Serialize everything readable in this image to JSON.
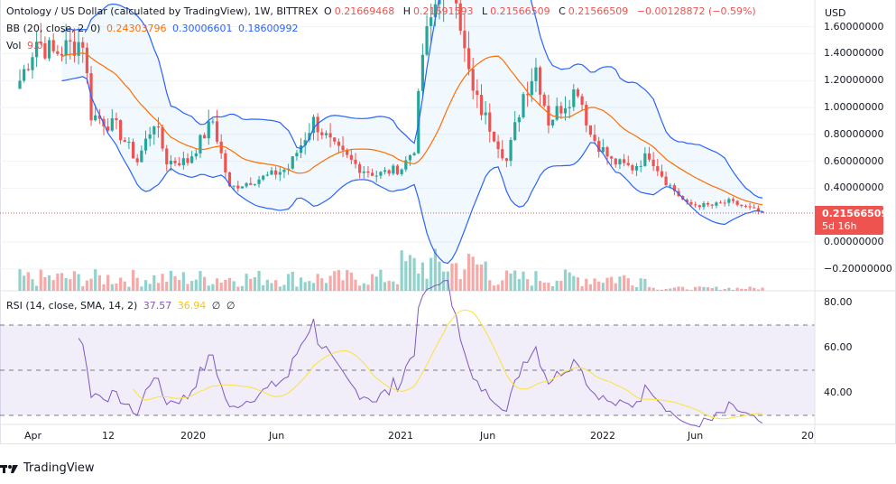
{
  "legend": {
    "title": "Ontology / US Dollar (calculated by TradingView), 1W, BITTREX",
    "open_label": "O",
    "open": "0.21669468",
    "high_label": "H",
    "high": "0.21691593",
    "low_label": "L",
    "low": "0.21566509",
    "close_label": "C",
    "close": "0.21566509",
    "change": "−0.00128872 (−0.59%)",
    "bb_label": "BB (20, close, 2, 0)",
    "bb_basis": "0.24303796",
    "bb_upper": "0.30006601",
    "bb_lower": "0.18600992",
    "vol_label": "Vol",
    "vol": "9.0"
  },
  "rsi_legend": {
    "label": "RSI (14, close, SMA, 14, 2)",
    "rsi": "37.57",
    "sma": "36.94",
    "n1": "∅",
    "n2": "∅"
  },
  "price_axis": {
    "currency": "USD",
    "ticks": [
      "1.60000000",
      "1.40000000",
      "1.20000000",
      "1.00000000",
      "0.80000000",
      "0.60000000",
      "0.40000000",
      "0.00000000",
      "−0.20000000"
    ],
    "tick_values": [
      1.6,
      1.4,
      1.2,
      1.0,
      0.8,
      0.6,
      0.4,
      0.0,
      -0.2
    ]
  },
  "current_price": {
    "value": "0.21566509",
    "countdown": "5d 16h"
  },
  "rsi_axis": {
    "ticks": [
      "80.00",
      "60.00",
      "40.00"
    ],
    "tick_values": [
      80,
      60,
      40
    ]
  },
  "time_axis": [
    "Apr",
    "12",
    "2020",
    "Jun",
    "2021",
    "Jun",
    "2022",
    "Jun",
    "20"
  ],
  "footer": {
    "brand": "TradingView"
  },
  "colors": {
    "up": "#26a69a",
    "down": "#ef5350",
    "bb_basis": "#ff6d00",
    "bb_band": "#2962ff",
    "rsi": "#7e57c2",
    "rsi_sma": "#f9e23c"
  },
  "price_keypoints": [
    [
      0,
      1.2
    ],
    [
      4,
      1.5
    ],
    [
      8,
      1.4
    ],
    [
      15,
      1.5
    ],
    [
      17,
      0.95
    ],
    [
      23,
      0.85
    ],
    [
      28,
      0.6
    ],
    [
      32,
      0.9
    ],
    [
      35,
      0.6
    ],
    [
      40,
      0.6
    ],
    [
      46,
      0.9
    ],
    [
      50,
      0.4
    ],
    [
      55,
      0.45
    ],
    [
      60,
      0.5
    ],
    [
      64,
      0.55
    ],
    [
      70,
      0.9
    ],
    [
      75,
      0.7
    ],
    [
      81,
      0.55
    ],
    [
      85,
      0.5
    ],
    [
      91,
      0.55
    ],
    [
      94,
      0.7
    ],
    [
      96,
      1.4
    ],
    [
      100,
      1.9
    ],
    [
      104,
      1.9
    ],
    [
      106,
      1.4
    ],
    [
      108,
      1.1
    ],
    [
      113,
      0.8
    ],
    [
      116,
      0.6
    ],
    [
      120,
      1.1
    ],
    [
      123,
      1.3
    ],
    [
      126,
      0.9
    ],
    [
      133,
      1.15
    ],
    [
      136,
      0.8
    ],
    [
      141,
      0.6
    ],
    [
      146,
      0.55
    ],
    [
      150,
      0.65
    ],
    [
      154,
      0.45
    ],
    [
      159,
      0.28
    ],
    [
      165,
      0.27
    ],
    [
      169,
      0.3
    ],
    [
      177,
      0.216
    ]
  ]
}
